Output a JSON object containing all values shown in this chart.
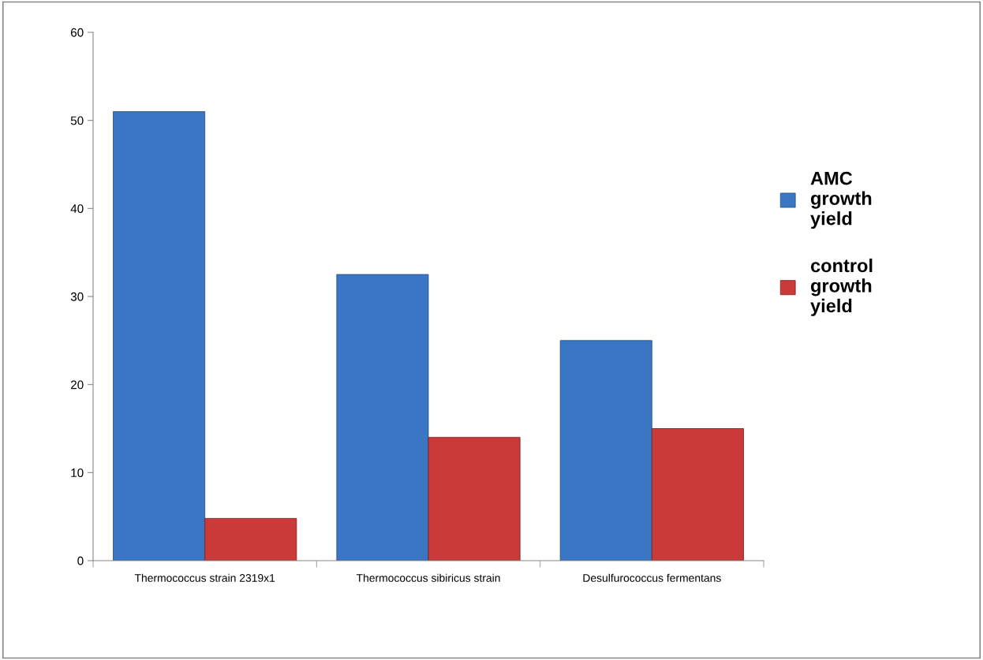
{
  "chart_data": {
    "type": "bar",
    "categories": [
      "Thermococcus strain 2319x1",
      "Thermococcus sibiricus strain",
      "Desulfurococcus fermentans"
    ],
    "series": [
      {
        "name": "AMC growth yield",
        "color": "#3a76c4",
        "values": [
          51,
          32.5,
          25
        ]
      },
      {
        "name": "control growth yield",
        "color": "#c93a38",
        "values": [
          4.8,
          14,
          15
        ]
      }
    ],
    "ylim": [
      0,
      60
    ],
    "yticks": [
      0,
      10,
      20,
      30,
      40,
      50,
      60
    ],
    "grid": false,
    "legend": "right"
  }
}
